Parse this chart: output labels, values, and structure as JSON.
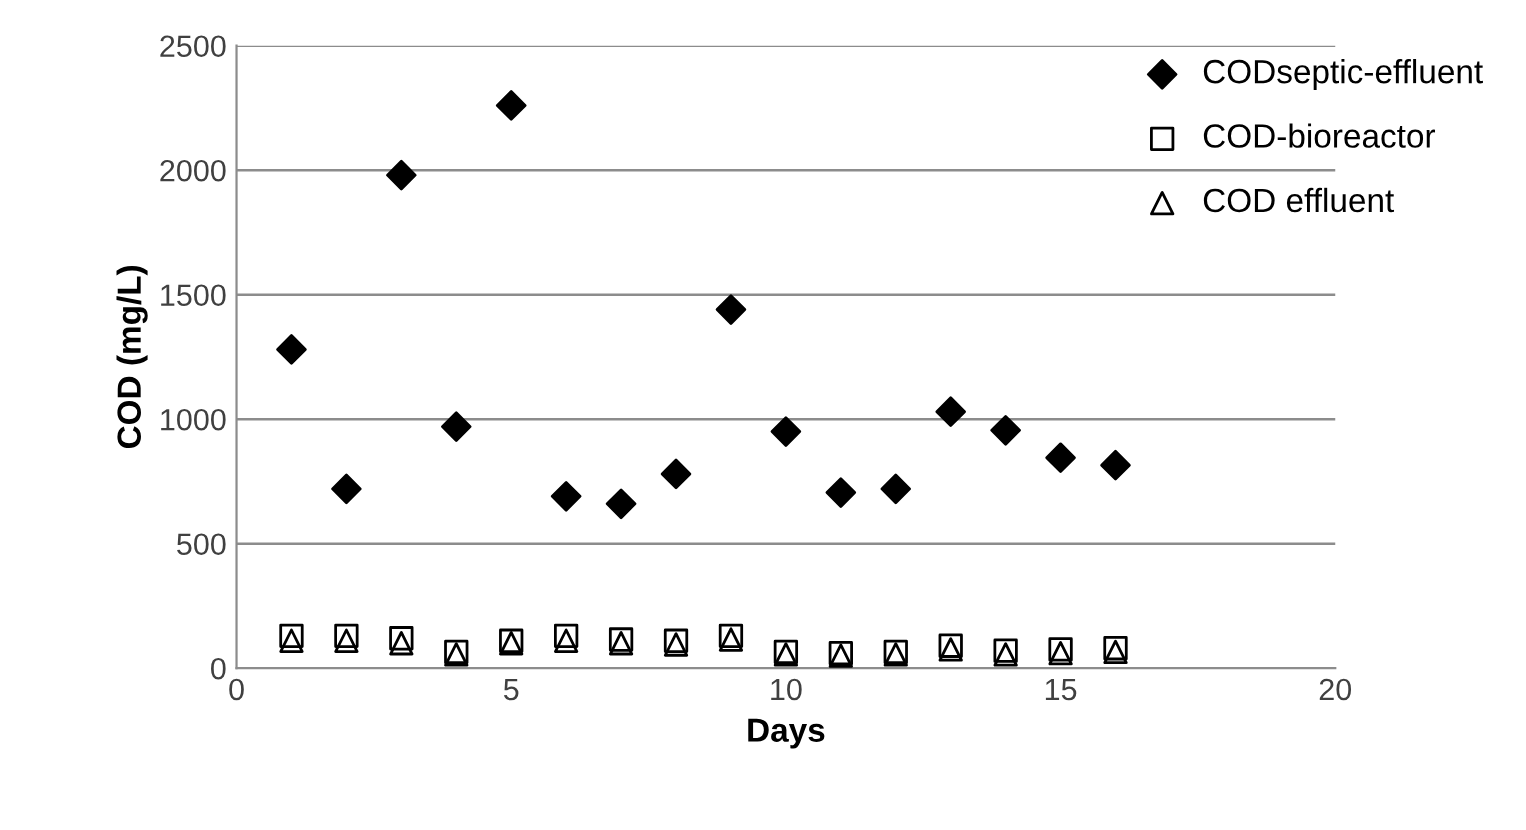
{
  "chart_data": {
    "type": "scatter",
    "xlabel": "Days",
    "ylabel": "COD (mg/L)",
    "x": [
      1,
      2,
      3,
      4,
      5,
      6,
      7,
      8,
      9,
      10,
      11,
      12,
      13,
      14,
      15,
      16
    ],
    "series": [
      {
        "name": "CODseptic-effluent",
        "color": "#000000",
        "marker": "diamond",
        "values": [
          1280,
          720,
          1980,
          970,
          2260,
          690,
          660,
          780,
          1440,
          950,
          705,
          720,
          1030,
          955,
          845,
          815
        ]
      },
      {
        "name": "COD-bioreactor",
        "color": "#000000",
        "marker": "square",
        "values": [
          130,
          130,
          120,
          65,
          110,
          130,
          115,
          110,
          130,
          65,
          60,
          65,
          90,
          70,
          75,
          80
        ]
      },
      {
        "name": "COD effluent",
        "color": "#000000",
        "marker": "triangle",
        "values": [
          110,
          110,
          100,
          55,
          100,
          110,
          100,
          95,
          115,
          55,
          50,
          55,
          75,
          55,
          60,
          65
        ]
      }
    ],
    "xlim": [
      0,
      20
    ],
    "xticks": [
      0,
      5,
      10,
      15,
      20
    ],
    "ylim": [
      0,
      2500
    ],
    "yticks": [
      0,
      500,
      1000,
      1500,
      2000,
      2500
    ],
    "grid": "y",
    "legend": "top right"
  }
}
